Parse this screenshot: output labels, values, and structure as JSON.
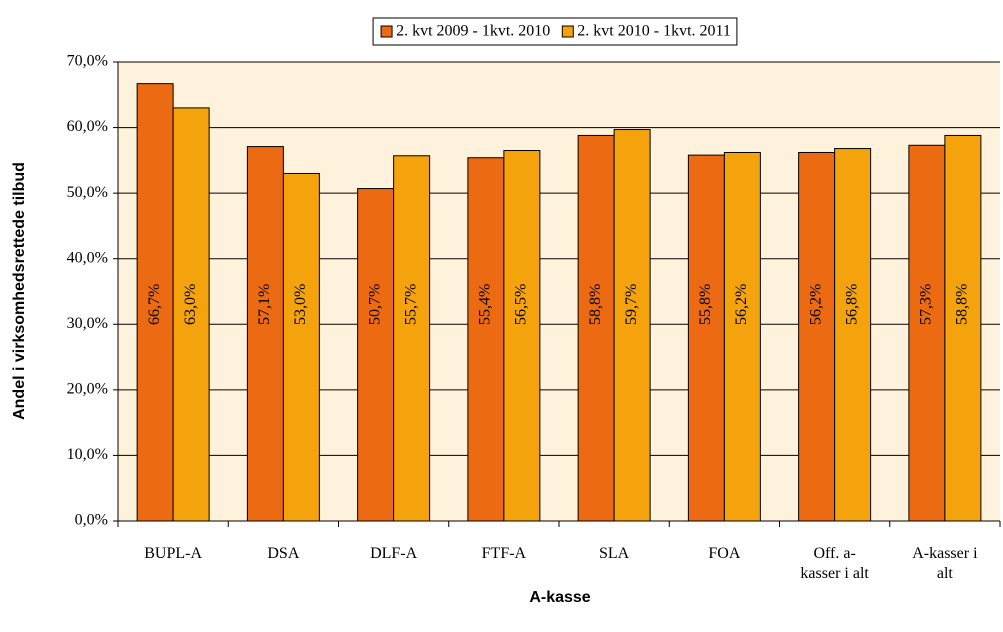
{
  "chart_data": {
    "type": "bar",
    "x_label": "A-kasse",
    "y_label": "Andel i virksomhedsrettede tilbud",
    "categories": [
      "BUPL-A",
      "DSA",
      "DLF-A",
      "FTF-A",
      "SLA",
      "FOA",
      "Off. a-kasser i alt",
      "A-kasser i alt"
    ],
    "series": [
      {
        "name": "2. kvt 2009 - 1kvt. 2010",
        "color": "#EC6A12",
        "values": [
          66.7,
          57.1,
          50.7,
          55.4,
          58.8,
          55.8,
          56.2,
          57.3
        ],
        "value_labels": [
          "66,7%",
          "57,1%",
          "50,7%",
          "55,4%",
          "58,8%",
          "55,8%",
          "56,2%",
          "57,3%"
        ]
      },
      {
        "name": "2. kvt 2010 - 1kvt. 2011",
        "color": "#F5A30C",
        "values": [
          63.0,
          53.0,
          55.7,
          56.5,
          59.7,
          56.2,
          56.8,
          58.8
        ],
        "value_labels": [
          "63,0%",
          "53,0%",
          "55,7%",
          "56,5%",
          "59,7%",
          "56,2%",
          "56,8%",
          "58,8%"
        ]
      }
    ],
    "ylim": [
      0,
      70
    ],
    "yticks": [
      {
        "value": 0,
        "label": "0,0%"
      },
      {
        "value": 10,
        "label": "10,0%"
      },
      {
        "value": 20,
        "label": "20,0%"
      },
      {
        "value": 30,
        "label": "30,0%"
      },
      {
        "value": 40,
        "label": "40,0%"
      },
      {
        "value": 50,
        "label": "50,0%"
      },
      {
        "value": 60,
        "label": "60,0%"
      },
      {
        "value": 70,
        "label": "70,0%"
      }
    ],
    "grid": true,
    "legend": "top"
  }
}
